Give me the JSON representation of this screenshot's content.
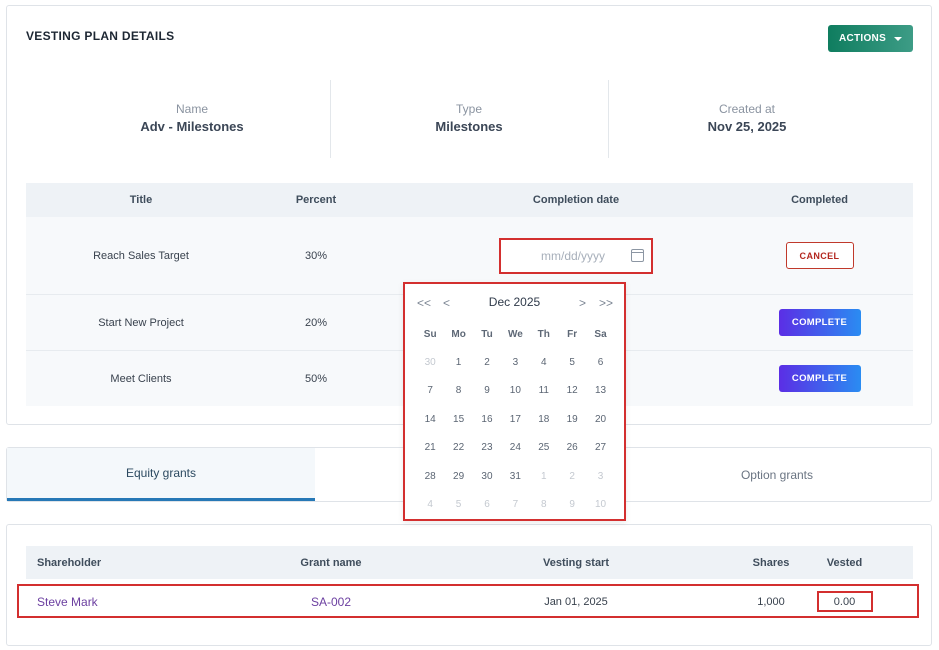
{
  "plan": {
    "title": "VESTING PLAN DETAILS",
    "actions_label": "ACTIONS",
    "summary": [
      {
        "label": "Name",
        "value": "Adv - Milestones"
      },
      {
        "label": "Type",
        "value": "Milestones"
      },
      {
        "label": "Created at",
        "value": "Nov 25, 2025"
      }
    ],
    "milestones": {
      "headers": {
        "title": "Title",
        "percent": "Percent",
        "completion_date": "Completion date",
        "completed": "Completed"
      },
      "rows": [
        {
          "title": "Reach Sales Target",
          "percent": "30%",
          "date_placeholder": "mm/dd/yyyy",
          "action": "CANCEL"
        },
        {
          "title": "Start New Project",
          "percent": "20%",
          "action": "COMPLETE"
        },
        {
          "title": "Meet Clients",
          "percent": "50%",
          "action": "COMPLETE"
        }
      ]
    }
  },
  "datepicker": {
    "prev_year": "<<",
    "prev_month": "<",
    "month": "Dec",
    "year": "2025",
    "next_month": ">",
    "next_year": ">>",
    "weekdays": [
      "Su",
      "Mo",
      "Tu",
      "We",
      "Th",
      "Fr",
      "Sa"
    ],
    "days": [
      {
        "d": "30",
        "muted": true
      },
      {
        "d": "1"
      },
      {
        "d": "2"
      },
      {
        "d": "3"
      },
      {
        "d": "4"
      },
      {
        "d": "5"
      },
      {
        "d": "6"
      },
      {
        "d": "7"
      },
      {
        "d": "8"
      },
      {
        "d": "9"
      },
      {
        "d": "10"
      },
      {
        "d": "11"
      },
      {
        "d": "12"
      },
      {
        "d": "13"
      },
      {
        "d": "14"
      },
      {
        "d": "15"
      },
      {
        "d": "16"
      },
      {
        "d": "17"
      },
      {
        "d": "18"
      },
      {
        "d": "19"
      },
      {
        "d": "20"
      },
      {
        "d": "21"
      },
      {
        "d": "22"
      },
      {
        "d": "23"
      },
      {
        "d": "24"
      },
      {
        "d": "25"
      },
      {
        "d": "26"
      },
      {
        "d": "27"
      },
      {
        "d": "28"
      },
      {
        "d": "29"
      },
      {
        "d": "30"
      },
      {
        "d": "31"
      },
      {
        "d": "1",
        "muted": true
      },
      {
        "d": "2",
        "muted": true
      },
      {
        "d": "3",
        "muted": true
      },
      {
        "d": "4",
        "muted": true
      },
      {
        "d": "5",
        "muted": true
      },
      {
        "d": "6",
        "muted": true
      },
      {
        "d": "7",
        "muted": true
      },
      {
        "d": "8",
        "muted": true
      },
      {
        "d": "9",
        "muted": true
      },
      {
        "d": "10",
        "muted": true
      }
    ]
  },
  "tabs": [
    {
      "label": "Equity grants",
      "active": true
    },
    {
      "label": "Option grants",
      "active": false
    }
  ],
  "grants": {
    "headers": {
      "shareholder": "Shareholder",
      "grant_name": "Grant name",
      "vesting_start": "Vesting start",
      "shares": "Shares",
      "vested": "Vested"
    },
    "rows": [
      {
        "shareholder": "Steve Mark",
        "grant_name": "SA-002",
        "vesting_start": "Jan 01, 2025",
        "shares": "1,000",
        "vested": "0.00"
      }
    ]
  },
  "colors": {
    "accent_green": "#0f7d5f",
    "highlight_red": "#d32f2f",
    "complete_purple": "#5b2ee5",
    "complete_blue": "#2a8cf2",
    "link_purple": "#6b3fa0"
  },
  "icons": {
    "date_input": "calendar-icon",
    "actions": "caret-down-icon"
  }
}
